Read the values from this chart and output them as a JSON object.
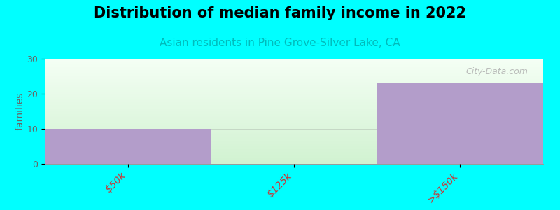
{
  "title": "Distribution of median family income in 2022",
  "subtitle": "Asian residents in Pine Grove-Silver Lake, CA",
  "categories": [
    "$50k",
    "$125k",
    ">$150k"
  ],
  "values": [
    10,
    0,
    23
  ],
  "bar_color": "#b39dca",
  "background_color": "#00ffff",
  "ylabel": "families",
  "ylim": [
    0,
    30
  ],
  "yticks": [
    0,
    10,
    20,
    30
  ],
  "title_fontsize": 15,
  "subtitle_fontsize": 11,
  "subtitle_color": "#00bbbb",
  "watermark": "City-Data.com",
  "tick_color": "#cc3333",
  "tick_rotation": 45,
  "bar_width": 1.0
}
